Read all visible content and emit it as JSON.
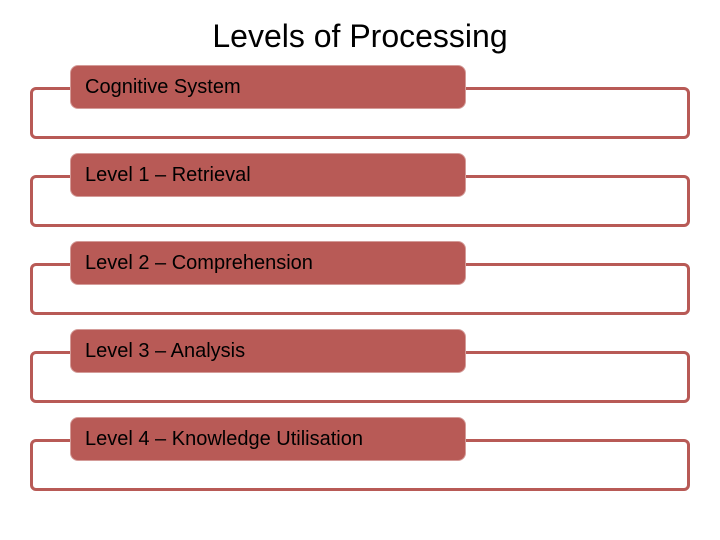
{
  "title": "Levels of Processing",
  "title_fontsize": 32,
  "title_color": "#000000",
  "background_color": "#ffffff",
  "accent_color": "#b85a56",
  "inner_text_color": "#000000",
  "border_width": 3,
  "inner_box_width": 396,
  "inner_box_height": 44,
  "label_fontsize": 20,
  "rows": [
    {
      "label": "Cognitive System"
    },
    {
      "label": "Level 1 – Retrieval"
    },
    {
      "label": "Level 2 – Comprehension"
    },
    {
      "label": "Level 3 – Analysis"
    },
    {
      "label": "Level 4 – Knowledge Utilisation"
    }
  ]
}
